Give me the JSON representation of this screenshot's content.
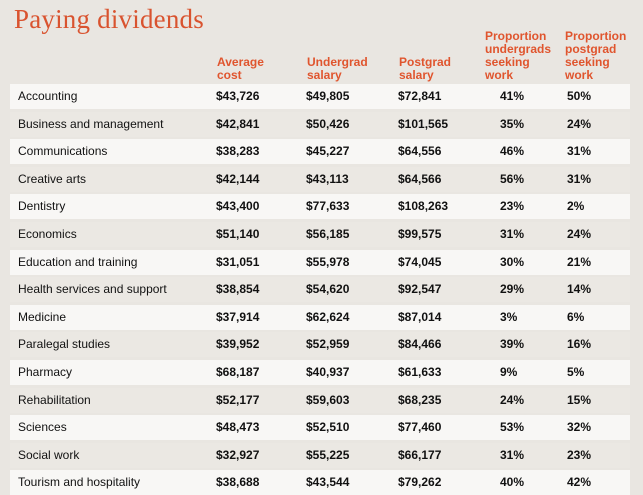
{
  "chart_data": {
    "type": "table",
    "title": "Paying dividends",
    "columns": [
      "Average cost",
      "Undergrad salary",
      "Postgrad salary",
      "Proportion undergrads seeking work",
      "Proportion postgrad seeking work"
    ],
    "header_lines": [
      [
        "Average",
        "cost"
      ],
      [
        "Undergrad",
        "salary"
      ],
      [
        "Postgrad",
        "salary"
      ],
      [
        "Proportion",
        "undergrads",
        "seeking",
        "work"
      ],
      [
        "Proportion",
        "postgrad",
        "seeking",
        "work"
      ]
    ],
    "rows": [
      {
        "field": "Accounting",
        "cost": "$43,726",
        "undergrad_salary": "$49,805",
        "postgrad_salary": "$72,841",
        "undergrad_seeking": "41%",
        "postgrad_seeking": "50%"
      },
      {
        "field": "Business and management",
        "cost": "$42,841",
        "undergrad_salary": "$50,426",
        "postgrad_salary": "$101,565",
        "undergrad_seeking": "35%",
        "postgrad_seeking": "24%"
      },
      {
        "field": "Communications",
        "cost": "$38,283",
        "undergrad_salary": "$45,227",
        "postgrad_salary": "$64,556",
        "undergrad_seeking": "46%",
        "postgrad_seeking": "31%"
      },
      {
        "field": "Creative arts",
        "cost": "$42,144",
        "undergrad_salary": "$43,113",
        "postgrad_salary": "$64,566",
        "undergrad_seeking": "56%",
        "postgrad_seeking": "31%"
      },
      {
        "field": "Dentistry",
        "cost": "$43,400",
        "undergrad_salary": "$77,633",
        "postgrad_salary": "$108,263",
        "undergrad_seeking": "23%",
        "postgrad_seeking": "2%"
      },
      {
        "field": "Economics",
        "cost": "$51,140",
        "undergrad_salary": "$56,185",
        "postgrad_salary": "$99,575",
        "undergrad_seeking": "31%",
        "postgrad_seeking": "24%"
      },
      {
        "field": "Education and training",
        "cost": "$31,051",
        "undergrad_salary": "$55,978",
        "postgrad_salary": "$74,045",
        "undergrad_seeking": "30%",
        "postgrad_seeking": "21%"
      },
      {
        "field": "Health services and support",
        "cost": "$38,854",
        "undergrad_salary": "$54,620",
        "postgrad_salary": "$92,547",
        "undergrad_seeking": "29%",
        "postgrad_seeking": "14%"
      },
      {
        "field": "Medicine",
        "cost": "$37,914",
        "undergrad_salary": "$62,624",
        "postgrad_salary": "$87,014",
        "undergrad_seeking": "3%",
        "postgrad_seeking": "6%"
      },
      {
        "field": "Paralegal studies",
        "cost": "$39,952",
        "undergrad_salary": "$52,959",
        "postgrad_salary": "$84,466",
        "undergrad_seeking": "39%",
        "postgrad_seeking": "16%"
      },
      {
        "field": "Pharmacy",
        "cost": "$68,187",
        "undergrad_salary": "$40,937",
        "postgrad_salary": "$61,633",
        "undergrad_seeking": "9%",
        "postgrad_seeking": "5%"
      },
      {
        "field": "Rehabilitation",
        "cost": "$52,177",
        "undergrad_salary": "$59,603",
        "postgrad_salary": "$68,235",
        "undergrad_seeking": "24%",
        "postgrad_seeking": "15%"
      },
      {
        "field": "Sciences",
        "cost": "$48,473",
        "undergrad_salary": "$52,510",
        "postgrad_salary": "$77,460",
        "undergrad_seeking": "53%",
        "postgrad_seeking": "32%"
      },
      {
        "field": "Social work",
        "cost": "$32,927",
        "undergrad_salary": "$55,225",
        "postgrad_salary": "$66,177",
        "undergrad_seeking": "31%",
        "postgrad_seeking": "23%"
      },
      {
        "field": "Tourism and hospitality",
        "cost": "$38,688",
        "undergrad_salary": "$43,544",
        "postgrad_salary": "$79,262",
        "undergrad_seeking": "40%",
        "postgrad_seeking": "42%"
      }
    ]
  },
  "colors": {
    "accent": "#e0552e",
    "title": "#d9532f",
    "background": "#e9e6e1",
    "row_light": "#f8f7f5",
    "row_dark": "#ebe8e3"
  }
}
